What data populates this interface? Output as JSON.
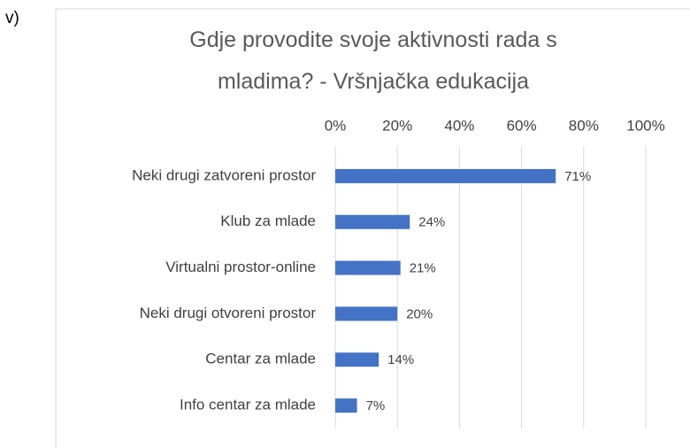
{
  "label": "v)",
  "chart_data": {
    "type": "bar",
    "orientation": "horizontal",
    "title": "Gdje provodite svoje aktivnosti rada s mladima? - Vršnjačka edukacija",
    "categories": [
      "Neki drugi zatvoreni prostor",
      "Klub za mlade",
      "Virtualni prostor-online",
      "Neki drugi otvoreni prostor",
      "Centar za mlade",
      "Info centar za mlade"
    ],
    "values": [
      71,
      24,
      21,
      20,
      14,
      7
    ],
    "value_labels": [
      "71%",
      "24%",
      "21%",
      "20%",
      "14%",
      "7%"
    ],
    "color": "#4472c4",
    "xlim": [
      0,
      100
    ],
    "xticks": [
      {
        "value": 0,
        "label": "0%"
      },
      {
        "value": 20,
        "label": "20%"
      },
      {
        "value": 40,
        "label": "40%"
      },
      {
        "value": 60,
        "label": "60%"
      },
      {
        "value": 80,
        "label": "80%"
      },
      {
        "value": 100,
        "label": "100%"
      }
    ],
    "grid": true
  }
}
